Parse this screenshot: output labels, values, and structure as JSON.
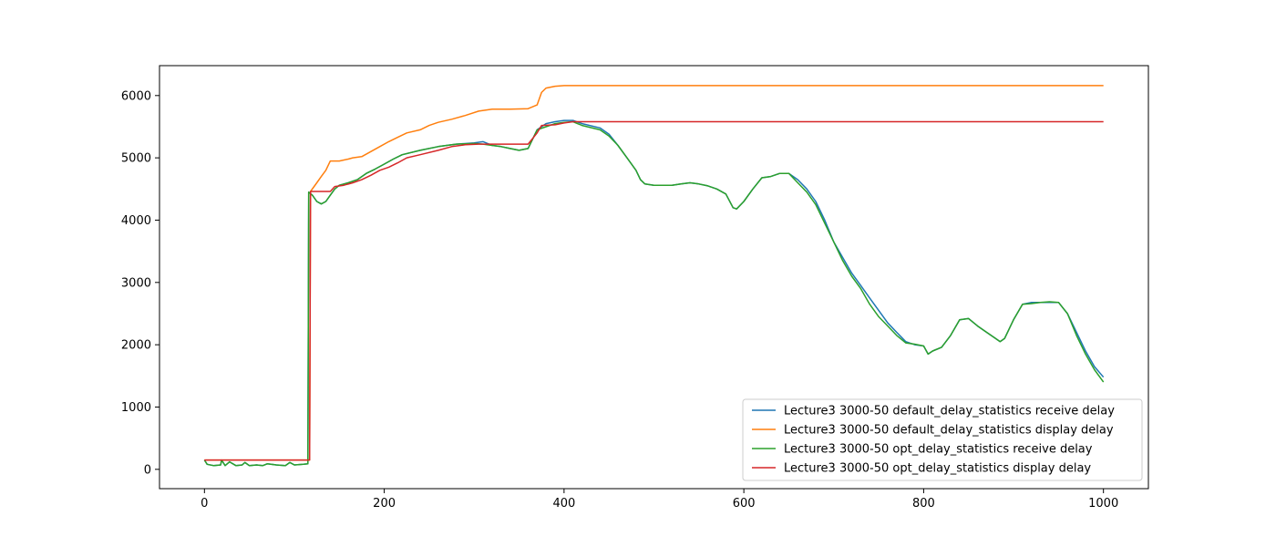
{
  "chart_data": {
    "type": "line",
    "title": "",
    "xlabel": "",
    "ylabel": "",
    "xlim": [
      -50,
      1050
    ],
    "ylim": [
      -310,
      6480
    ],
    "xticks": [
      0,
      200,
      400,
      600,
      800,
      1000
    ],
    "yticks": [
      0,
      1000,
      2000,
      3000,
      4000,
      5000,
      6000
    ],
    "grid": false,
    "legend_position": "lower-right",
    "series": [
      {
        "name": "Lecture3 3000-50 default_delay_statistics receive delay",
        "color": "#1f77b4",
        "points": [
          [
            0,
            150
          ],
          [
            3,
            80
          ],
          [
            10,
            60
          ],
          [
            18,
            70
          ],
          [
            19,
            150
          ],
          [
            23,
            60
          ],
          [
            28,
            120
          ],
          [
            35,
            60
          ],
          [
            42,
            70
          ],
          [
            45,
            110
          ],
          [
            50,
            60
          ],
          [
            58,
            70
          ],
          [
            65,
            60
          ],
          [
            70,
            90
          ],
          [
            80,
            70
          ],
          [
            90,
            60
          ],
          [
            95,
            110
          ],
          [
            100,
            70
          ],
          [
            110,
            80
          ],
          [
            115,
            90
          ],
          [
            116,
            4450
          ],
          [
            120,
            4400
          ],
          [
            125,
            4300
          ],
          [
            130,
            4260
          ],
          [
            135,
            4300
          ],
          [
            140,
            4400
          ],
          [
            145,
            4500
          ],
          [
            150,
            4560
          ],
          [
            160,
            4600
          ],
          [
            170,
            4650
          ],
          [
            180,
            4750
          ],
          [
            190,
            4820
          ],
          [
            200,
            4900
          ],
          [
            210,
            4980
          ],
          [
            220,
            5050
          ],
          [
            240,
            5120
          ],
          [
            260,
            5180
          ],
          [
            280,
            5220
          ],
          [
            300,
            5240
          ],
          [
            310,
            5260
          ],
          [
            320,
            5200
          ],
          [
            330,
            5180
          ],
          [
            340,
            5150
          ],
          [
            350,
            5120
          ],
          [
            360,
            5150
          ],
          [
            370,
            5450
          ],
          [
            380,
            5550
          ],
          [
            390,
            5580
          ],
          [
            400,
            5600
          ],
          [
            410,
            5600
          ],
          [
            420,
            5550
          ],
          [
            440,
            5480
          ],
          [
            450,
            5380
          ],
          [
            460,
            5200
          ],
          [
            470,
            5000
          ],
          [
            480,
            4800
          ],
          [
            485,
            4650
          ],
          [
            490,
            4580
          ],
          [
            500,
            4560
          ],
          [
            520,
            4560
          ],
          [
            530,
            4580
          ],
          [
            540,
            4600
          ],
          [
            550,
            4580
          ],
          [
            560,
            4550
          ],
          [
            570,
            4500
          ],
          [
            580,
            4420
          ],
          [
            588,
            4200
          ],
          [
            592,
            4180
          ],
          [
            600,
            4300
          ],
          [
            610,
            4500
          ],
          [
            620,
            4680
          ],
          [
            630,
            4700
          ],
          [
            640,
            4750
          ],
          [
            650,
            4750
          ],
          [
            660,
            4650
          ],
          [
            670,
            4500
          ],
          [
            680,
            4300
          ],
          [
            690,
            4000
          ],
          [
            700,
            3650
          ],
          [
            710,
            3400
          ],
          [
            720,
            3150
          ],
          [
            730,
            2950
          ],
          [
            740,
            2750
          ],
          [
            750,
            2550
          ],
          [
            760,
            2350
          ],
          [
            770,
            2200
          ],
          [
            780,
            2050
          ],
          [
            790,
            2000
          ],
          [
            800,
            1980
          ],
          [
            805,
            1850
          ],
          [
            810,
            1900
          ],
          [
            820,
            1960
          ],
          [
            830,
            2150
          ],
          [
            840,
            2400
          ],
          [
            850,
            2420
          ],
          [
            860,
            2300
          ],
          [
            870,
            2200
          ],
          [
            880,
            2100
          ],
          [
            885,
            2050
          ],
          [
            890,
            2100
          ],
          [
            900,
            2400
          ],
          [
            910,
            2650
          ],
          [
            920,
            2680
          ],
          [
            930,
            2680
          ],
          [
            940,
            2680
          ],
          [
            950,
            2680
          ],
          [
            960,
            2500
          ],
          [
            970,
            2200
          ],
          [
            980,
            1900
          ],
          [
            990,
            1650
          ],
          [
            1000,
            1480
          ]
        ]
      },
      {
        "name": "Lecture3 3000-50 default_delay_statistics display delay",
        "color": "#ff7f0e",
        "points": [
          [
            0,
            150
          ],
          [
            50,
            150
          ],
          [
            100,
            150
          ],
          [
            117,
            150
          ],
          [
            118,
            4460
          ],
          [
            125,
            4600
          ],
          [
            130,
            4700
          ],
          [
            135,
            4800
          ],
          [
            140,
            4950
          ],
          [
            150,
            4950
          ],
          [
            160,
            4980
          ],
          [
            165,
            5000
          ],
          [
            175,
            5020
          ],
          [
            185,
            5100
          ],
          [
            195,
            5180
          ],
          [
            205,
            5260
          ],
          [
            215,
            5330
          ],
          [
            225,
            5400
          ],
          [
            240,
            5450
          ],
          [
            250,
            5520
          ],
          [
            260,
            5570
          ],
          [
            275,
            5620
          ],
          [
            290,
            5680
          ],
          [
            305,
            5750
          ],
          [
            320,
            5780
          ],
          [
            340,
            5780
          ],
          [
            360,
            5790
          ],
          [
            370,
            5850
          ],
          [
            375,
            6050
          ],
          [
            380,
            6120
          ],
          [
            390,
            6150
          ],
          [
            400,
            6160
          ],
          [
            420,
            6160
          ],
          [
            500,
            6160
          ],
          [
            600,
            6160
          ],
          [
            700,
            6160
          ],
          [
            800,
            6160
          ],
          [
            900,
            6160
          ],
          [
            1000,
            6160
          ]
        ]
      },
      {
        "name": "Lecture3 3000-50 opt_delay_statistics receive delay",
        "color": "#2ca02c",
        "points": [
          [
            0,
            150
          ],
          [
            3,
            80
          ],
          [
            10,
            60
          ],
          [
            18,
            70
          ],
          [
            19,
            150
          ],
          [
            23,
            60
          ],
          [
            28,
            120
          ],
          [
            35,
            60
          ],
          [
            42,
            70
          ],
          [
            45,
            110
          ],
          [
            50,
            60
          ],
          [
            58,
            70
          ],
          [
            65,
            60
          ],
          [
            70,
            90
          ],
          [
            80,
            70
          ],
          [
            90,
            60
          ],
          [
            95,
            110
          ],
          [
            100,
            70
          ],
          [
            110,
            80
          ],
          [
            115,
            90
          ],
          [
            116,
            4450
          ],
          [
            120,
            4400
          ],
          [
            125,
            4300
          ],
          [
            130,
            4260
          ],
          [
            135,
            4300
          ],
          [
            140,
            4400
          ],
          [
            145,
            4500
          ],
          [
            150,
            4560
          ],
          [
            160,
            4600
          ],
          [
            170,
            4650
          ],
          [
            180,
            4750
          ],
          [
            190,
            4820
          ],
          [
            200,
            4900
          ],
          [
            210,
            4980
          ],
          [
            220,
            5050
          ],
          [
            240,
            5120
          ],
          [
            260,
            5180
          ],
          [
            280,
            5220
          ],
          [
            300,
            5230
          ],
          [
            310,
            5220
          ],
          [
            320,
            5200
          ],
          [
            330,
            5180
          ],
          [
            340,
            5150
          ],
          [
            350,
            5120
          ],
          [
            360,
            5150
          ],
          [
            370,
            5450
          ],
          [
            380,
            5500
          ],
          [
            390,
            5550
          ],
          [
            400,
            5570
          ],
          [
            410,
            5580
          ],
          [
            420,
            5520
          ],
          [
            440,
            5450
          ],
          [
            450,
            5350
          ],
          [
            460,
            5200
          ],
          [
            470,
            5000
          ],
          [
            480,
            4800
          ],
          [
            485,
            4650
          ],
          [
            490,
            4580
          ],
          [
            500,
            4560
          ],
          [
            520,
            4560
          ],
          [
            530,
            4580
          ],
          [
            540,
            4600
          ],
          [
            550,
            4580
          ],
          [
            560,
            4550
          ],
          [
            570,
            4500
          ],
          [
            580,
            4420
          ],
          [
            588,
            4200
          ],
          [
            592,
            4180
          ],
          [
            600,
            4300
          ],
          [
            610,
            4500
          ],
          [
            620,
            4680
          ],
          [
            630,
            4700
          ],
          [
            640,
            4750
          ],
          [
            650,
            4750
          ],
          [
            660,
            4600
          ],
          [
            670,
            4450
          ],
          [
            680,
            4250
          ],
          [
            690,
            3950
          ],
          [
            700,
            3650
          ],
          [
            710,
            3350
          ],
          [
            720,
            3100
          ],
          [
            730,
            2900
          ],
          [
            740,
            2650
          ],
          [
            750,
            2450
          ],
          [
            760,
            2300
          ],
          [
            770,
            2150
          ],
          [
            780,
            2030
          ],
          [
            790,
            2010
          ],
          [
            800,
            1980
          ],
          [
            805,
            1850
          ],
          [
            810,
            1900
          ],
          [
            820,
            1960
          ],
          [
            830,
            2150
          ],
          [
            840,
            2400
          ],
          [
            850,
            2420
          ],
          [
            860,
            2300
          ],
          [
            870,
            2200
          ],
          [
            880,
            2100
          ],
          [
            885,
            2050
          ],
          [
            890,
            2100
          ],
          [
            900,
            2400
          ],
          [
            910,
            2650
          ],
          [
            920,
            2660
          ],
          [
            930,
            2680
          ],
          [
            940,
            2690
          ],
          [
            950,
            2680
          ],
          [
            960,
            2500
          ],
          [
            970,
            2150
          ],
          [
            980,
            1850
          ],
          [
            990,
            1600
          ],
          [
            1000,
            1400
          ]
        ]
      },
      {
        "name": "Lecture3 3000-50 opt_delay_statistics display delay",
        "color": "#d62728",
        "points": [
          [
            0,
            150
          ],
          [
            50,
            150
          ],
          [
            100,
            150
          ],
          [
            117,
            150
          ],
          [
            118,
            4460
          ],
          [
            140,
            4460
          ],
          [
            145,
            4540
          ],
          [
            155,
            4560
          ],
          [
            165,
            4600
          ],
          [
            175,
            4650
          ],
          [
            185,
            4720
          ],
          [
            195,
            4800
          ],
          [
            205,
            4850
          ],
          [
            215,
            4920
          ],
          [
            225,
            5000
          ],
          [
            240,
            5050
          ],
          [
            260,
            5120
          ],
          [
            275,
            5180
          ],
          [
            290,
            5210
          ],
          [
            305,
            5220
          ],
          [
            320,
            5220
          ],
          [
            340,
            5220
          ],
          [
            360,
            5220
          ],
          [
            370,
            5400
          ],
          [
            375,
            5520
          ],
          [
            390,
            5530
          ],
          [
            400,
            5560
          ],
          [
            410,
            5580
          ],
          [
            420,
            5580
          ],
          [
            500,
            5580
          ],
          [
            600,
            5580
          ],
          [
            700,
            5580
          ],
          [
            800,
            5580
          ],
          [
            900,
            5580
          ],
          [
            1000,
            5580
          ]
        ]
      }
    ]
  }
}
